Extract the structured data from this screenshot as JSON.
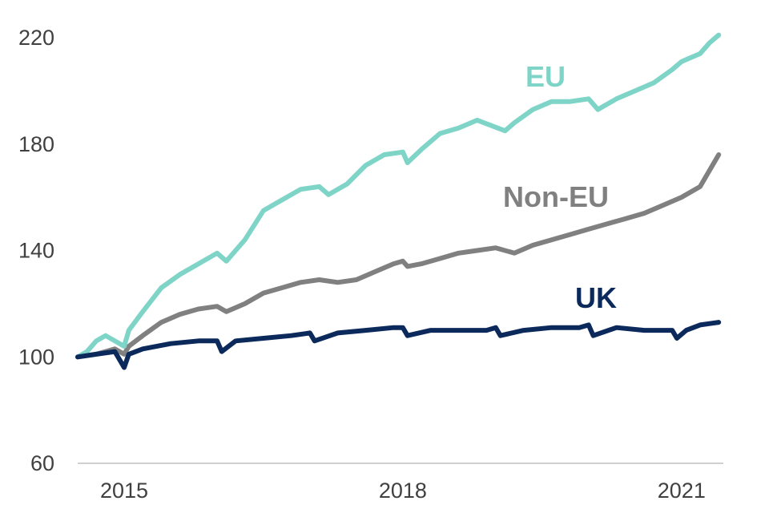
{
  "chart_data": {
    "type": "line",
    "title": "",
    "xlabel": "",
    "ylabel": "",
    "x_ticks": [
      2015,
      2018,
      2021
    ],
    "x_tick_labels": [
      "2015",
      "2018",
      "2021"
    ],
    "xlim": [
      2014.5,
      2021.45
    ],
    "ylim": [
      60,
      220
    ],
    "y_ticks": [
      60,
      100,
      140,
      180,
      220
    ],
    "y_tick_labels": [
      "60",
      "100",
      "140",
      "180",
      "220"
    ],
    "grid": false,
    "legend": "direct-labels",
    "series": [
      {
        "name": "EU",
        "color": "#7fd4c8",
        "x": [
          2014.5,
          2014.6,
          2014.7,
          2014.8,
          2014.9,
          2015.0,
          2015.05,
          2015.2,
          2015.4,
          2015.6,
          2015.8,
          2016.0,
          2016.1,
          2016.3,
          2016.5,
          2016.7,
          2016.9,
          2017.1,
          2017.2,
          2017.4,
          2017.6,
          2017.8,
          2018.0,
          2018.05,
          2018.2,
          2018.4,
          2018.6,
          2018.8,
          2019.1,
          2019.2,
          2019.4,
          2019.6,
          2019.8,
          2020.0,
          2020.1,
          2020.3,
          2020.5,
          2020.7,
          2020.9,
          2021.0,
          2021.2,
          2021.3,
          2021.4
        ],
        "y": [
          100,
          102,
          106,
          108,
          106,
          104,
          110,
          117,
          126,
          131,
          135,
          139,
          136,
          144,
          155,
          159,
          163,
          164,
          161,
          165,
          172,
          176,
          177,
          173,
          178,
          184,
          186,
          189,
          185,
          188,
          193,
          196,
          196,
          197,
          193,
          197,
          200,
          203,
          208,
          211,
          214,
          218,
          221
        ]
      },
      {
        "name": "Non-EU",
        "color": "#808080",
        "x": [
          2014.5,
          2014.7,
          2014.9,
          2015.0,
          2015.05,
          2015.2,
          2015.4,
          2015.6,
          2015.8,
          2016.0,
          2016.1,
          2016.3,
          2016.5,
          2016.7,
          2016.9,
          2017.1,
          2017.3,
          2017.5,
          2017.7,
          2017.9,
          2018.0,
          2018.05,
          2018.2,
          2018.4,
          2018.6,
          2018.8,
          2019.0,
          2019.2,
          2019.4,
          2019.6,
          2019.8,
          2020.0,
          2020.2,
          2020.4,
          2020.6,
          2020.8,
          2021.0,
          2021.2,
          2021.4
        ],
        "y": [
          100,
          101,
          103,
          101,
          104,
          108,
          113,
          116,
          118,
          119,
          117,
          120,
          124,
          126,
          128,
          129,
          128,
          129,
          132,
          135,
          136,
          134,
          135,
          137,
          139,
          140,
          141,
          139,
          142,
          144,
          146,
          148,
          150,
          152,
          154,
          157,
          160,
          164,
          176
        ]
      },
      {
        "name": "UK",
        "color": "#0b2a5b",
        "x": [
          2014.5,
          2014.7,
          2014.9,
          2015.0,
          2015.05,
          2015.2,
          2015.5,
          2015.8,
          2016.0,
          2016.05,
          2016.2,
          2016.5,
          2016.8,
          2017.0,
          2017.05,
          2017.3,
          2017.6,
          2017.9,
          2018.0,
          2018.05,
          2018.3,
          2018.6,
          2018.9,
          2019.0,
          2019.05,
          2019.3,
          2019.6,
          2019.9,
          2020.0,
          2020.05,
          2020.3,
          2020.6,
          2020.9,
          2020.95,
          2021.05,
          2021.2,
          2021.4
        ],
        "y": [
          100,
          101,
          102,
          96,
          101,
          103,
          105,
          106,
          106,
          102,
          106,
          107,
          108,
          109,
          106,
          109,
          110,
          111,
          111,
          108,
          110,
          110,
          110,
          111,
          108,
          110,
          111,
          111,
          112,
          108,
          111,
          110,
          110,
          107,
          110,
          112,
          113
        ]
      }
    ]
  },
  "labels": {
    "eu": "EU",
    "non_eu": "Non-EU",
    "uk": "UK"
  }
}
